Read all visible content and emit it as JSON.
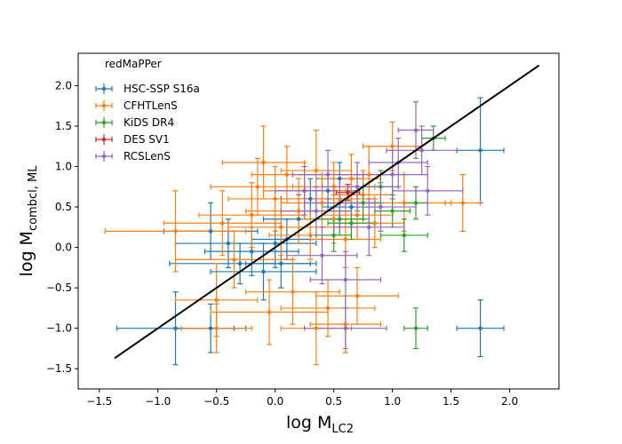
{
  "chart_data": {
    "type": "scatter",
    "title": "",
    "xlabel_main": "log M",
    "xlabel_sub": "LC2",
    "ylabel_main": "log M",
    "ylabel_sub": "combcl, ML",
    "xlim": [
      -1.68,
      2.42
    ],
    "ylim": [
      -1.75,
      2.4
    ],
    "xticks": [
      -1.5,
      -1.0,
      -0.5,
      0.0,
      0.5,
      1.0,
      1.5,
      2.0
    ],
    "xtick_labels": [
      "−1.5",
      "−1.0",
      "−0.5",
      "0.0",
      "0.5",
      "1.0",
      "1.5",
      "2.0"
    ],
    "yticks": [
      -1.5,
      -1.0,
      -0.5,
      0.0,
      0.5,
      1.0,
      1.5,
      2.0
    ],
    "ytick_labels": [
      "−1.5",
      "−1.0",
      "−0.5",
      "0.0",
      "0.5",
      "1.0",
      "1.5",
      "2.0"
    ],
    "grid": false,
    "legend_title": "redMaPPer",
    "legend_position": "top-left",
    "one_to_one_line": {
      "x": [
        -1.37,
        2.25
      ],
      "y": [
        -1.37,
        2.25
      ],
      "color": "#000000"
    },
    "series": [
      {
        "name": "HSC-SSP S16a",
        "color": "#1f77b4",
        "points": [
          {
            "x": 1.75,
            "y": 1.2,
            "xerr": 0.2,
            "yerr": 0.65
          },
          {
            "x": 1.75,
            "y": -1.0,
            "xerr": 0.2,
            "yerr": 0.35
          },
          {
            "x": -0.85,
            "y": -1.0,
            "xerr": 0.5,
            "yerr": 0.45
          },
          {
            "x": -0.55,
            "y": -1.0,
            "xerr": 0.3,
            "yerr": 0.3
          },
          {
            "x": -0.55,
            "y": 0.2,
            "xerr": 0.4,
            "yerr": 0.35
          },
          {
            "x": -0.4,
            "y": 0.05,
            "xerr": 0.45,
            "yerr": 0.3
          },
          {
            "x": -0.3,
            "y": -0.2,
            "xerr": 0.6,
            "yerr": 0.25
          },
          {
            "x": -0.2,
            "y": -0.05,
            "xerr": 0.4,
            "yerr": 0.3
          },
          {
            "x": -0.1,
            "y": -0.3,
            "xerr": 0.45,
            "yerr": 0.35
          },
          {
            "x": 0.0,
            "y": 0.05,
            "xerr": 0.35,
            "yerr": 0.3
          },
          {
            "x": 0.05,
            "y": -0.2,
            "xerr": 0.3,
            "yerr": 0.3
          },
          {
            "x": 0.1,
            "y": 0.1,
            "xerr": 0.3,
            "yerr": 0.25
          },
          {
            "x": 0.2,
            "y": 0.35,
            "xerr": 0.3,
            "yerr": 0.3
          },
          {
            "x": 0.3,
            "y": 0.6,
            "xerr": 0.25,
            "yerr": 0.25
          },
          {
            "x": 0.45,
            "y": 0.7,
            "xerr": 0.25,
            "yerr": 0.25
          },
          {
            "x": 0.55,
            "y": 0.85,
            "xerr": 0.2,
            "yerr": 0.2
          },
          {
            "x": 0.65,
            "y": 0.5,
            "xerr": 0.25,
            "yerr": 0.25
          }
        ]
      },
      {
        "name": "CFHTLenS",
        "color": "#ff7f0e",
        "points": [
          {
            "x": -0.85,
            "y": 0.2,
            "xerr": 0.6,
            "yerr": 0.5
          },
          {
            "x": -0.5,
            "y": -0.65,
            "xerr": 0.35,
            "yerr": 0.45
          },
          {
            "x": -0.5,
            "y": -1.0,
            "xerr": 0.3,
            "yerr": 0.3
          },
          {
            "x": -0.45,
            "y": 0.3,
            "xerr": 0.5,
            "yerr": 0.4
          },
          {
            "x": -0.35,
            "y": -0.15,
            "xerr": 0.5,
            "yerr": 0.35
          },
          {
            "x": -0.2,
            "y": 0.4,
            "xerr": 0.45,
            "yerr": 0.4
          },
          {
            "x": -0.15,
            "y": 0.75,
            "xerr": 0.4,
            "yerr": 0.35
          },
          {
            "x": -0.1,
            "y": 1.05,
            "xerr": 0.35,
            "yerr": 0.45
          },
          {
            "x": -0.05,
            "y": -0.8,
            "xerr": 0.5,
            "yerr": 0.4
          },
          {
            "x": 0.0,
            "y": 0.6,
            "xerr": 0.4,
            "yerr": 0.4
          },
          {
            "x": 0.05,
            "y": 0.25,
            "xerr": 0.45,
            "yerr": 0.35
          },
          {
            "x": 0.1,
            "y": 0.9,
            "xerr": 0.3,
            "yerr": 0.35
          },
          {
            "x": 0.15,
            "y": -0.55,
            "xerr": 0.4,
            "yerr": 0.4
          },
          {
            "x": 0.2,
            "y": 0.45,
            "xerr": 0.45,
            "yerr": 0.4
          },
          {
            "x": 0.25,
            "y": 0.7,
            "xerr": 0.35,
            "yerr": 0.35
          },
          {
            "x": 0.3,
            "y": 0.15,
            "xerr": 0.35,
            "yerr": 0.3
          },
          {
            "x": 0.35,
            "y": -1.0,
            "xerr": 0.3,
            "yerr": 0.45
          },
          {
            "x": 0.35,
            "y": 0.95,
            "xerr": 0.3,
            "yerr": 0.5
          },
          {
            "x": 0.4,
            "y": 0.55,
            "xerr": 0.35,
            "yerr": 0.3
          },
          {
            "x": 0.45,
            "y": -0.75,
            "xerr": 0.4,
            "yerr": 0.35
          },
          {
            "x": 0.5,
            "y": 0.35,
            "xerr": 0.3,
            "yerr": 0.3
          },
          {
            "x": 0.5,
            "y": 0.75,
            "xerr": 0.35,
            "yerr": 0.3
          },
          {
            "x": 0.55,
            "y": 0.6,
            "xerr": 0.3,
            "yerr": 0.3
          },
          {
            "x": 0.6,
            "y": 0.1,
            "xerr": 0.3,
            "yerr": 0.35
          },
          {
            "x": 0.6,
            "y": -0.95,
            "xerr": 0.3,
            "yerr": 0.35
          },
          {
            "x": 0.65,
            "y": 0.85,
            "xerr": 0.25,
            "yerr": 0.3
          },
          {
            "x": 0.7,
            "y": -0.6,
            "xerr": 0.35,
            "yerr": 0.35
          },
          {
            "x": 0.7,
            "y": 0.4,
            "xerr": 0.3,
            "yerr": 0.3
          },
          {
            "x": 0.75,
            "y": 0.65,
            "xerr": 0.25,
            "yerr": 0.3
          },
          {
            "x": 0.8,
            "y": 0.9,
            "xerr": 0.3,
            "yerr": 0.35
          },
          {
            "x": 0.85,
            "y": 0.3,
            "xerr": 0.25,
            "yerr": 0.3
          },
          {
            "x": 1.0,
            "y": 1.25,
            "xerr": 0.25,
            "yerr": 0.3
          },
          {
            "x": 1.1,
            "y": 0.55,
            "xerr": 0.4,
            "yerr": 0.35
          },
          {
            "x": 1.6,
            "y": 0.55,
            "xerr": 0.15,
            "yerr": 0.35
          }
        ]
      },
      {
        "name": "KiDS DR4",
        "color": "#2ca02c",
        "points": [
          {
            "x": 1.2,
            "y": -1.0,
            "xerr": 0.1,
            "yerr": 0.25
          },
          {
            "x": 1.1,
            "y": 0.15,
            "xerr": 0.2,
            "yerr": 0.2
          },
          {
            "x": 1.2,
            "y": 0.55,
            "xerr": 0.1,
            "yerr": 0.2
          },
          {
            "x": 1.35,
            "y": 1.35,
            "xerr": 0.1,
            "yerr": 0.15
          },
          {
            "x": 0.65,
            "y": 0.3,
            "xerr": 0.2,
            "yerr": 0.2
          },
          {
            "x": 0.75,
            "y": 0.55,
            "xerr": 0.15,
            "yerr": 0.2
          },
          {
            "x": 0.9,
            "y": 0.75,
            "xerr": 0.15,
            "yerr": 0.2
          },
          {
            "x": 0.55,
            "y": 0.35,
            "xerr": 0.2,
            "yerr": 0.2
          },
          {
            "x": 0.5,
            "y": 0.15,
            "xerr": 0.15,
            "yerr": 0.2
          },
          {
            "x": 1.0,
            "y": 0.45,
            "xerr": 0.15,
            "yerr": 0.2
          }
        ]
      },
      {
        "name": "DES SV1",
        "color": "#d62728",
        "points": [
          {
            "x": 0.62,
            "y": 0.68,
            "xerr": 0.1,
            "yerr": 0.1
          }
        ]
      },
      {
        "name": "RCSLenS",
        "color": "#9467bd",
        "points": [
          {
            "x": 1.25,
            "y": 1.2,
            "xerr": 0.3,
            "yerr": 0.3
          },
          {
            "x": 1.2,
            "y": 1.45,
            "xerr": 0.15,
            "yerr": 0.35
          },
          {
            "x": 1.3,
            "y": 0.7,
            "xerr": 0.3,
            "yerr": 0.3
          },
          {
            "x": 1.0,
            "y": 0.9,
            "xerr": 0.3,
            "yerr": 0.3
          },
          {
            "x": 0.9,
            "y": 0.5,
            "xerr": 0.3,
            "yerr": 0.3
          },
          {
            "x": 0.8,
            "y": 0.25,
            "xerr": 0.3,
            "yerr": 0.35
          },
          {
            "x": 0.7,
            "y": 0.75,
            "xerr": 0.3,
            "yerr": 0.3
          },
          {
            "x": 0.6,
            "y": -0.4,
            "xerr": 0.3,
            "yerr": 0.35
          },
          {
            "x": 0.55,
            "y": 0.55,
            "xerr": 0.3,
            "yerr": 0.3
          },
          {
            "x": 0.45,
            "y": 0.9,
            "xerr": 0.3,
            "yerr": 0.3
          },
          {
            "x": 0.4,
            "y": -0.1,
            "xerr": 0.3,
            "yerr": 0.35
          },
          {
            "x": 0.35,
            "y": 0.45,
            "xerr": 0.3,
            "yerr": 0.3
          },
          {
            "x": 0.25,
            "y": 0.7,
            "xerr": 0.25,
            "yerr": 0.3
          },
          {
            "x": 0.6,
            "y": -1.0,
            "xerr": 0.35,
            "yerr": 0.25
          },
          {
            "x": 1.05,
            "y": 1.05,
            "xerr": 0.25,
            "yerr": 0.3
          }
        ]
      }
    ]
  }
}
